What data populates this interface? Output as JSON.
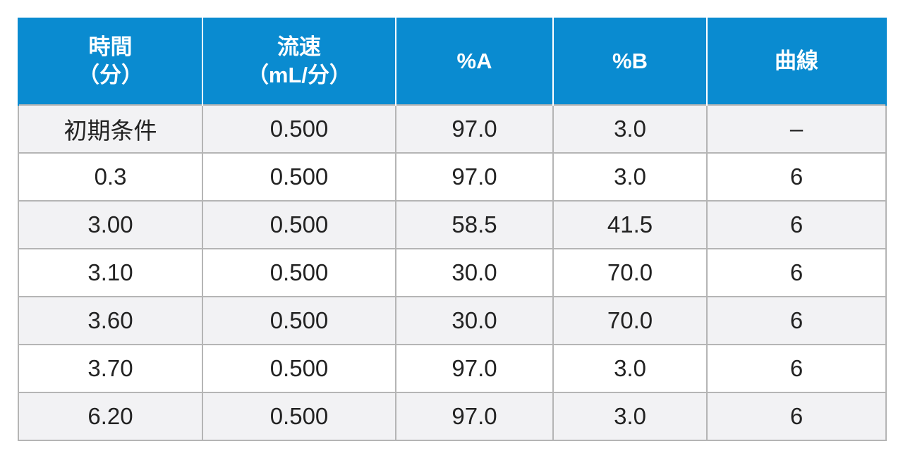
{
  "table": {
    "header": [
      [
        "時間",
        "（分）"
      ],
      [
        "流速",
        "（mL/分）"
      ],
      [
        "%A"
      ],
      [
        "%B"
      ],
      [
        "曲線"
      ]
    ],
    "rows": [
      [
        "初期条件",
        "0.500",
        "97.0",
        "3.0",
        "–"
      ],
      [
        "0.3",
        "0.500",
        "97.0",
        "3.0",
        "6"
      ],
      [
        "3.00",
        "0.500",
        "58.5",
        "41.5",
        "6"
      ],
      [
        "3.10",
        "0.500",
        "30.0",
        "70.0",
        "6"
      ],
      [
        "3.60",
        "0.500",
        "30.0",
        "70.0",
        "6"
      ],
      [
        "3.70",
        "0.500",
        "97.0",
        "3.0",
        "6"
      ],
      [
        "6.20",
        "0.500",
        "97.0",
        "3.0",
        "6"
      ]
    ]
  }
}
